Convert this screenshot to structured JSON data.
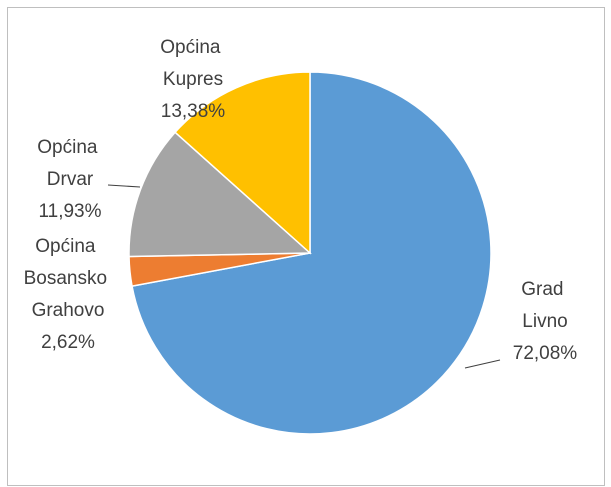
{
  "chart_data": {
    "type": "pie",
    "categories": [
      "Grad Livno",
      "Općina Bosansko Grahovo",
      "Općina Drvar",
      "Općina Kupres"
    ],
    "values": [
      72.08,
      2.62,
      11.93,
      13.38
    ],
    "value_labels": [
      "72,08%",
      "2,62%",
      "11,93%",
      "13,38%"
    ],
    "colors": [
      "#5b9bd5",
      "#ed7d31",
      "#a5a5a5",
      "#ffc000"
    ]
  }
}
